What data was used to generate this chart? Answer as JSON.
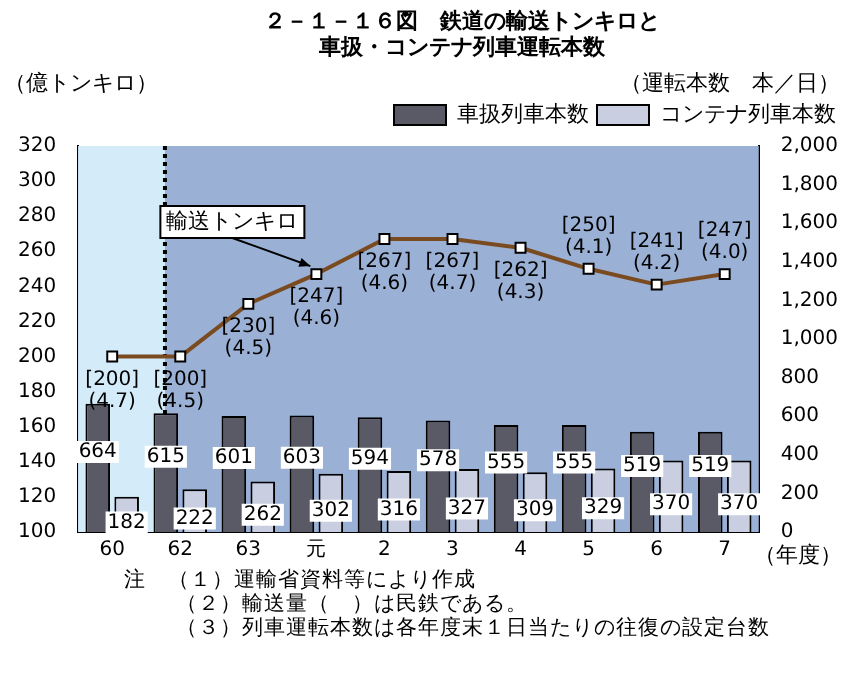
{
  "chart_data": {
    "type": "bar",
    "title": "２－１－１６図　鉄道の輸送トンキロと",
    "subtitle": "車扱・コンテナ列車運転本数",
    "ylabel": "（億トンキロ）",
    "y2label": "（運転本数　本／日）",
    "xlabel": "（年度）",
    "categories": [
      "60",
      "62",
      "63",
      "元",
      "2",
      "3",
      "4",
      "5",
      "6",
      "7"
    ],
    "series": [
      {
        "name": "車扱列車本数",
        "axis": "y2",
        "color": "#5a5a66",
        "values": [
          664,
          615,
          601,
          603,
          594,
          578,
          555,
          555,
          519,
          519
        ]
      },
      {
        "name": "コンテナ列車本数",
        "axis": "y2",
        "color": "#c9cfe0",
        "values": [
          182,
          222,
          262,
          302,
          316,
          327,
          309,
          329,
          370,
          370
        ]
      },
      {
        "name": "輸送トンキロ",
        "type": "line",
        "axis": "y",
        "color": "#7a4a20",
        "values": [
          200,
          200,
          230,
          247,
          267,
          267,
          262,
          250,
          241,
          247
        ],
        "value_labels": [
          "[200]\n(4.7)",
          "[200]\n(4.5)",
          "[230]\n(4.5)",
          "[247]\n(4.6)",
          "[267]\n(4.6)",
          "[267]\n(4.7)",
          "[262]\n(4.3)",
          "[250]\n(4.1)",
          "[241]\n(4.2)",
          "[247]\n(4.0)"
        ]
      }
    ],
    "ylim": [
      100,
      320
    ],
    "yticks": [
      100,
      120,
      140,
      160,
      180,
      200,
      220,
      240,
      260,
      280,
      300,
      320
    ],
    "y2lim": [
      0,
      2000
    ],
    "y2ticks": [
      0,
      {
        "value": 200,
        "label": "200"
      },
      {
        "value": 400,
        "label": "400"
      },
      {
        "value": 600,
        "label": "600"
      },
      {
        "value": 800,
        "label": "800"
      },
      {
        "value": 1000,
        "label": "1,000"
      },
      {
        "value": 1200,
        "label": "1,200"
      },
      {
        "value": 1400,
        "label": "1,400"
      },
      {
        "value": 1600,
        "label": "1,600"
      },
      {
        "value": 1800,
        "label": "1,800"
      },
      {
        "value": 2000,
        "label": "2,000"
      }
    ],
    "bands": [
      {
        "axis": "x",
        "from": "60",
        "to": "62",
        "color": "#d4ecfa"
      }
    ],
    "ref_lines": [
      {
        "axis": "x",
        "value": "62",
        "line_style": "dotted",
        "color": "#000000"
      }
    ],
    "data_labels": true,
    "legend": "top right",
    "marker": "square",
    "grid": false,
    "annotations": [
      "注　（１）運輸省資料等により作成",
      "（２）輸送量（　）は民鉄である。",
      "（３）列車運転本数は各年度末１日当たりの往復の設定台数"
    ]
  }
}
